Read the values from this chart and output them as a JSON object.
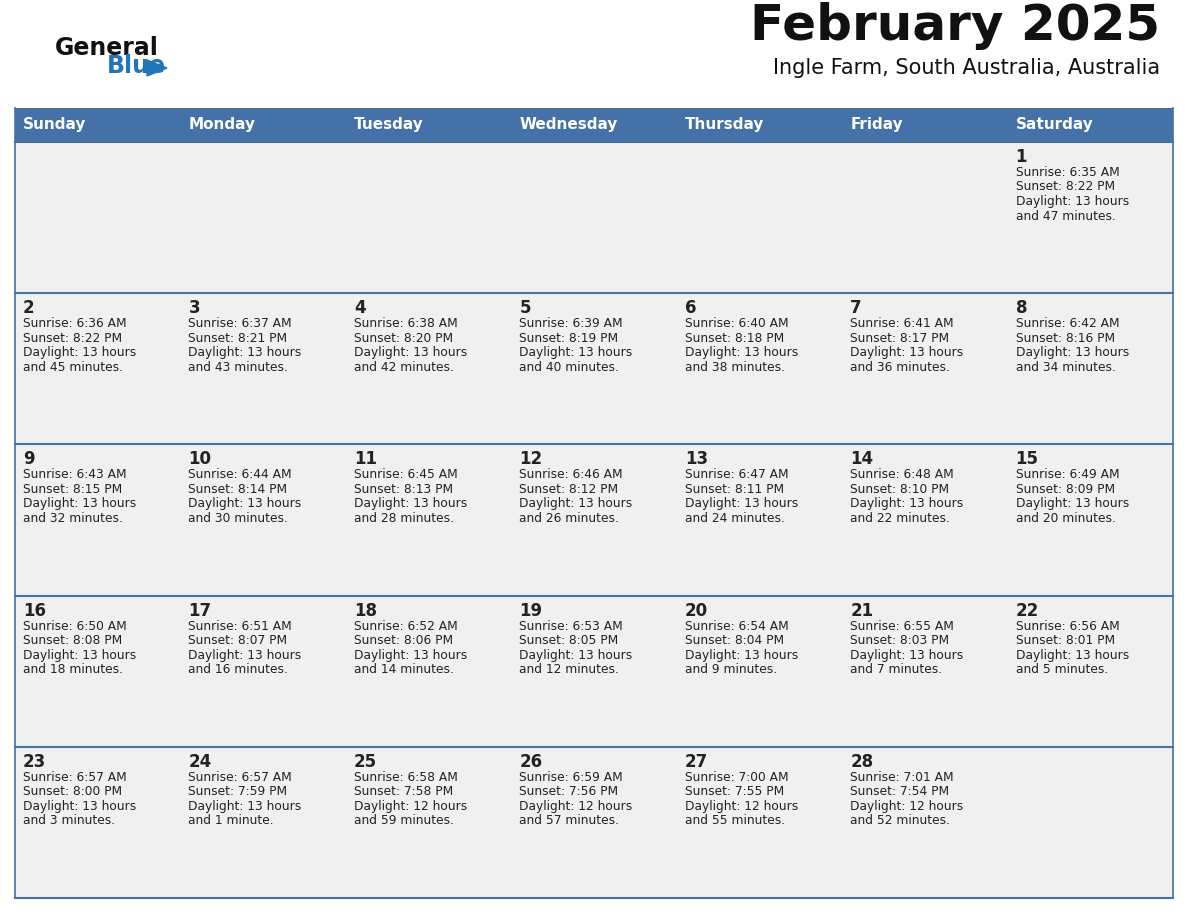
{
  "title": "February 2025",
  "subtitle": "Ingle Farm, South Australia, Australia",
  "days_of_week": [
    "Sunday",
    "Monday",
    "Tuesday",
    "Wednesday",
    "Thursday",
    "Friday",
    "Saturday"
  ],
  "header_bg": "#4472a8",
  "header_text": "#FFFFFF",
  "cell_bg": "#f0f0f0",
  "cell_bg_white": "#FFFFFF",
  "cell_border_color": "#4472a8",
  "cell_border_thin": "#c0c0c0",
  "day_num_color": "#222222",
  "info_text_color": "#222222",
  "title_color": "#111111",
  "subtitle_color": "#111111",
  "logo_general_color": "#111111",
  "logo_blue_color": "#2175b8",
  "calendar_data": [
    [
      null,
      null,
      null,
      null,
      null,
      null,
      {
        "day": 1,
        "sunrise": "6:35 AM",
        "sunset": "8:22 PM",
        "daylight_line1": "13 hours",
        "daylight_line2": "and 47 minutes."
      }
    ],
    [
      {
        "day": 2,
        "sunrise": "6:36 AM",
        "sunset": "8:22 PM",
        "daylight_line1": "13 hours",
        "daylight_line2": "and 45 minutes."
      },
      {
        "day": 3,
        "sunrise": "6:37 AM",
        "sunset": "8:21 PM",
        "daylight_line1": "13 hours",
        "daylight_line2": "and 43 minutes."
      },
      {
        "day": 4,
        "sunrise": "6:38 AM",
        "sunset": "8:20 PM",
        "daylight_line1": "13 hours",
        "daylight_line2": "and 42 minutes."
      },
      {
        "day": 5,
        "sunrise": "6:39 AM",
        "sunset": "8:19 PM",
        "daylight_line1": "13 hours",
        "daylight_line2": "and 40 minutes."
      },
      {
        "day": 6,
        "sunrise": "6:40 AM",
        "sunset": "8:18 PM",
        "daylight_line1": "13 hours",
        "daylight_line2": "and 38 minutes."
      },
      {
        "day": 7,
        "sunrise": "6:41 AM",
        "sunset": "8:17 PM",
        "daylight_line1": "13 hours",
        "daylight_line2": "and 36 minutes."
      },
      {
        "day": 8,
        "sunrise": "6:42 AM",
        "sunset": "8:16 PM",
        "daylight_line1": "13 hours",
        "daylight_line2": "and 34 minutes."
      }
    ],
    [
      {
        "day": 9,
        "sunrise": "6:43 AM",
        "sunset": "8:15 PM",
        "daylight_line1": "13 hours",
        "daylight_line2": "and 32 minutes."
      },
      {
        "day": 10,
        "sunrise": "6:44 AM",
        "sunset": "8:14 PM",
        "daylight_line1": "13 hours",
        "daylight_line2": "and 30 minutes."
      },
      {
        "day": 11,
        "sunrise": "6:45 AM",
        "sunset": "8:13 PM",
        "daylight_line1": "13 hours",
        "daylight_line2": "and 28 minutes."
      },
      {
        "day": 12,
        "sunrise": "6:46 AM",
        "sunset": "8:12 PM",
        "daylight_line1": "13 hours",
        "daylight_line2": "and 26 minutes."
      },
      {
        "day": 13,
        "sunrise": "6:47 AM",
        "sunset": "8:11 PM",
        "daylight_line1": "13 hours",
        "daylight_line2": "and 24 minutes."
      },
      {
        "day": 14,
        "sunrise": "6:48 AM",
        "sunset": "8:10 PM",
        "daylight_line1": "13 hours",
        "daylight_line2": "and 22 minutes."
      },
      {
        "day": 15,
        "sunrise": "6:49 AM",
        "sunset": "8:09 PM",
        "daylight_line1": "13 hours",
        "daylight_line2": "and 20 minutes."
      }
    ],
    [
      {
        "day": 16,
        "sunrise": "6:50 AM",
        "sunset": "8:08 PM",
        "daylight_line1": "13 hours",
        "daylight_line2": "and 18 minutes."
      },
      {
        "day": 17,
        "sunrise": "6:51 AM",
        "sunset": "8:07 PM",
        "daylight_line1": "13 hours",
        "daylight_line2": "and 16 minutes."
      },
      {
        "day": 18,
        "sunrise": "6:52 AM",
        "sunset": "8:06 PM",
        "daylight_line1": "13 hours",
        "daylight_line2": "and 14 minutes."
      },
      {
        "day": 19,
        "sunrise": "6:53 AM",
        "sunset": "8:05 PM",
        "daylight_line1": "13 hours",
        "daylight_line2": "and 12 minutes."
      },
      {
        "day": 20,
        "sunrise": "6:54 AM",
        "sunset": "8:04 PM",
        "daylight_line1": "13 hours",
        "daylight_line2": "and 9 minutes."
      },
      {
        "day": 21,
        "sunrise": "6:55 AM",
        "sunset": "8:03 PM",
        "daylight_line1": "13 hours",
        "daylight_line2": "and 7 minutes."
      },
      {
        "day": 22,
        "sunrise": "6:56 AM",
        "sunset": "8:01 PM",
        "daylight_line1": "13 hours",
        "daylight_line2": "and 5 minutes."
      }
    ],
    [
      {
        "day": 23,
        "sunrise": "6:57 AM",
        "sunset": "8:00 PM",
        "daylight_line1": "13 hours",
        "daylight_line2": "and 3 minutes."
      },
      {
        "day": 24,
        "sunrise": "6:57 AM",
        "sunset": "7:59 PM",
        "daylight_line1": "13 hours",
        "daylight_line2": "and 1 minute."
      },
      {
        "day": 25,
        "sunrise": "6:58 AM",
        "sunset": "7:58 PM",
        "daylight_line1": "12 hours",
        "daylight_line2": "and 59 minutes."
      },
      {
        "day": 26,
        "sunrise": "6:59 AM",
        "sunset": "7:56 PM",
        "daylight_line1": "12 hours",
        "daylight_line2": "and 57 minutes."
      },
      {
        "day": 27,
        "sunrise": "7:00 AM",
        "sunset": "7:55 PM",
        "daylight_line1": "12 hours",
        "daylight_line2": "and 55 minutes."
      },
      {
        "day": 28,
        "sunrise": "7:01 AM",
        "sunset": "7:54 PM",
        "daylight_line1": "12 hours",
        "daylight_line2": "and 52 minutes."
      },
      null
    ]
  ]
}
